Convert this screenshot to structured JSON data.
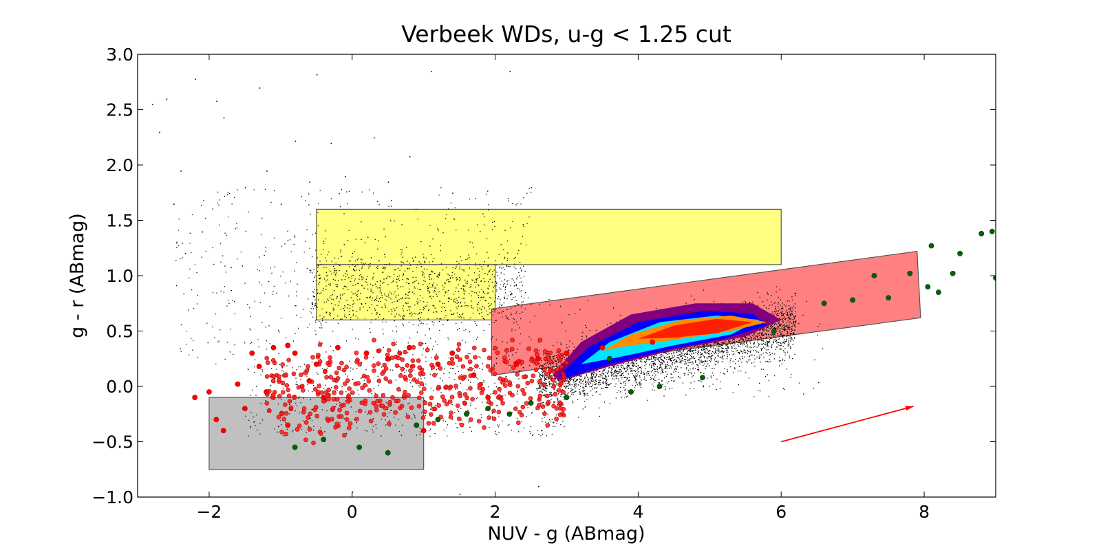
{
  "chart_data": {
    "type": "scatter",
    "title": "Verbeek WDs, u-g < 1.25 cut",
    "xlabel": "NUV - g (ABmag)",
    "ylabel": "g - r (ABmag)",
    "xlim": [
      -3,
      9
    ],
    "ylim": [
      -1.0,
      3.0
    ],
    "xticks": [
      -2,
      0,
      2,
      4,
      6,
      8
    ],
    "xtick_labels": [
      "−2",
      "0",
      "2",
      "4",
      "6",
      "8"
    ],
    "yticks": [
      -1.0,
      -0.5,
      0.0,
      0.5,
      1.0,
      1.5,
      2.0,
      2.5,
      3.0
    ],
    "ytick_labels": [
      "−1.0",
      "−0.5",
      "0.0",
      "0.5",
      "1.0",
      "1.5",
      "2.0",
      "2.5",
      "3.0"
    ],
    "grid": false,
    "legend": "none",
    "regions": [
      {
        "shape": "rect",
        "x": [
          -0.5,
          6
        ],
        "y": [
          1.1,
          1.6
        ],
        "color": "#ffff80"
      },
      {
        "shape": "rect",
        "x": [
          -0.5,
          2
        ],
        "y": [
          0.6,
          1.1
        ],
        "color": "#ffff80"
      },
      {
        "shape": "rect",
        "x": [
          -2,
          1
        ],
        "y": [
          -0.75,
          -0.1
        ],
        "color": "#c0c0c0"
      },
      {
        "shape": "polygon",
        "points": [
          [
            1.95,
            0.7
          ],
          [
            7.9,
            1.22
          ],
          [
            7.95,
            0.62
          ],
          [
            1.95,
            0.1
          ]
        ],
        "color": "#ff8080"
      }
    ],
    "reddening_vector": {
      "from": [
        6.0,
        -0.5
      ],
      "to": [
        7.85,
        -0.18
      ],
      "color": "#ff0000"
    },
    "density_contours": {
      "levels": [
        {
          "color": "#800080",
          "points": [
            [
              2.8,
              0.1
            ],
            [
              3.2,
              0.4
            ],
            [
              3.9,
              0.65
            ],
            [
              4.8,
              0.75
            ],
            [
              5.6,
              0.75
            ],
            [
              6.0,
              0.6
            ],
            [
              5.5,
              0.45
            ],
            [
              4.5,
              0.33
            ],
            [
              3.6,
              0.18
            ],
            [
              2.9,
              0.05
            ]
          ]
        },
        {
          "color": "#0000ff",
          "points": [
            [
              2.9,
              0.1
            ],
            [
              3.3,
              0.35
            ],
            [
              4.0,
              0.58
            ],
            [
              4.9,
              0.68
            ],
            [
              5.6,
              0.66
            ],
            [
              5.8,
              0.55
            ],
            [
              5.2,
              0.43
            ],
            [
              4.4,
              0.33
            ],
            [
              3.6,
              0.2
            ],
            [
              3.0,
              0.08
            ]
          ]
        },
        {
          "color": "#00e5ff",
          "points": [
            [
              3.2,
              0.2
            ],
            [
              3.6,
              0.4
            ],
            [
              4.3,
              0.58
            ],
            [
              5.1,
              0.64
            ],
            [
              5.7,
              0.6
            ],
            [
              5.3,
              0.47
            ],
            [
              4.5,
              0.37
            ],
            [
              3.7,
              0.26
            ]
          ]
        },
        {
          "color": "#ff8c00",
          "points": [
            [
              3.5,
              0.32
            ],
            [
              3.9,
              0.47
            ],
            [
              4.6,
              0.6
            ],
            [
              5.3,
              0.64
            ],
            [
              5.8,
              0.58
            ],
            [
              5.3,
              0.5
            ],
            [
              4.5,
              0.42
            ],
            [
              3.8,
              0.36
            ]
          ]
        },
        {
          "color": "#ff2000",
          "points": [
            [
              4.0,
              0.43
            ],
            [
              4.5,
              0.55
            ],
            [
              5.1,
              0.61
            ],
            [
              5.6,
              0.58
            ],
            [
              5.1,
              0.48
            ],
            [
              4.5,
              0.44
            ]
          ]
        }
      ]
    },
    "series": [
      {
        "marker": "point",
        "color": "#000000",
        "values": [
          [
            -2.8,
            2.55
          ],
          [
            -2.7,
            2.3
          ],
          [
            -2.6,
            2.6
          ],
          [
            -2.5,
            1.65
          ],
          [
            -2.4,
            1.95
          ],
          [
            -2.2,
            2.78
          ],
          [
            -2.1,
            1.4
          ],
          [
            -1.9,
            2.58
          ],
          [
            -1.8,
            2.43
          ],
          [
            -1.7,
            1.08
          ],
          [
            -1.5,
            1.8
          ],
          [
            -1.3,
            2.7
          ],
          [
            -1.2,
            1.95
          ],
          [
            -1.0,
            1.65
          ],
          [
            -0.8,
            2.22
          ],
          [
            -0.6,
            1.85
          ],
          [
            -0.5,
            2.82
          ],
          [
            -0.3,
            2.2
          ],
          [
            -0.1,
            1.9
          ],
          [
            0.3,
            2.25
          ],
          [
            0.5,
            1.85
          ],
          [
            0.8,
            2.08
          ],
          [
            1.1,
            2.85
          ],
          [
            1.4,
            1.75
          ],
          [
            1.9,
            1.6
          ],
          [
            2.2,
            2.85
          ],
          [
            2.5,
            1.8
          ],
          [
            0.0,
            -0.95
          ],
          [
            2.6,
            -0.9
          ],
          [
            1.5,
            -0.97
          ]
        ]
      },
      {
        "marker": "circle",
        "color": "#ff0000",
        "values": [
          [
            -2.2,
            -0.1
          ],
          [
            -2.0,
            -0.05
          ],
          [
            -1.9,
            -0.3
          ],
          [
            -1.8,
            -0.4
          ],
          [
            -1.6,
            0.02
          ],
          [
            -1.5,
            -0.2
          ],
          [
            -1.4,
            0.3
          ],
          [
            -1.3,
            0.18
          ],
          [
            -1.2,
            -0.05
          ],
          [
            -1.1,
            0.35
          ],
          [
            -0.9,
            0.37
          ],
          [
            -0.8,
            0.3
          ],
          [
            -0.6,
            0.05
          ],
          [
            -0.5,
            0.2
          ],
          [
            -0.4,
            -0.1
          ],
          [
            -0.2,
            0.35
          ],
          [
            0.2,
            0.3
          ],
          [
            0.5,
            0.25
          ],
          [
            0.8,
            0.35
          ],
          [
            1.2,
            0.2
          ],
          [
            1.4,
            0.3
          ],
          [
            1.7,
            0.1
          ],
          [
            1.9,
            -0.1
          ],
          [
            2.3,
            0.2
          ],
          [
            2.6,
            0.25
          ],
          [
            3.0,
            0.3
          ],
          [
            3.5,
            0.35
          ],
          [
            4.2,
            0.4
          ],
          [
            -0.9,
            -0.35
          ],
          [
            1.0,
            -0.4
          ]
        ]
      },
      {
        "marker": "circle",
        "color": "#006400",
        "values": [
          [
            -0.8,
            -0.55
          ],
          [
            -0.4,
            -0.48
          ],
          [
            0.1,
            -0.55
          ],
          [
            0.5,
            -0.6
          ],
          [
            0.9,
            -0.35
          ],
          [
            1.2,
            -0.3
          ],
          [
            1.6,
            -0.25
          ],
          [
            1.9,
            -0.2
          ],
          [
            2.2,
            -0.25
          ],
          [
            2.5,
            -0.15
          ],
          [
            3.0,
            -0.1
          ],
          [
            3.6,
            0.25
          ],
          [
            3.9,
            -0.05
          ],
          [
            4.3,
            0.0
          ],
          [
            4.9,
            0.08
          ],
          [
            5.9,
            0.5
          ],
          [
            6.6,
            0.75
          ],
          [
            7.0,
            0.78
          ],
          [
            7.3,
            1.0
          ],
          [
            7.5,
            0.8
          ],
          [
            7.8,
            1.02
          ],
          [
            8.05,
            0.9
          ],
          [
            8.1,
            1.27
          ],
          [
            8.2,
            0.85
          ],
          [
            8.4,
            1.02
          ],
          [
            8.5,
            1.2
          ],
          [
            8.8,
            1.38
          ],
          [
            8.95,
            1.4
          ],
          [
            9.0,
            0.98
          ]
        ]
      }
    ]
  }
}
